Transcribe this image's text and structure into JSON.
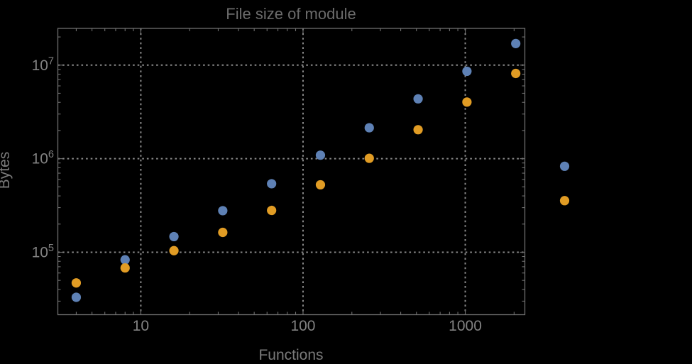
{
  "chart_data": {
    "type": "scatter",
    "title": "File size of module",
    "xlabel": "Functions",
    "ylabel": "Bytes",
    "xscale": "log",
    "yscale": "log",
    "xlim": [
      3.08,
      2330
    ],
    "ylim": [
      21500,
      24700000
    ],
    "grid": "dotted-major-decades",
    "legend": "none",
    "x": [
      4,
      8,
      16,
      32,
      64,
      128,
      256,
      512,
      1024,
      2048,
      4096
    ],
    "series": [
      {
        "name": "series-1-blue",
        "color": "#5E81B5",
        "values": [
          33000,
          83000,
          147000,
          278000,
          540000,
          1090000,
          2140000,
          4360000,
          8600000,
          17000000,
          830000
        ]
      },
      {
        "name": "series-2-orange",
        "color": "#E19C24",
        "values": [
          47000,
          68000,
          104000,
          163000,
          280000,
          526000,
          1010000,
          2040000,
          4030000,
          8150000,
          356000
        ]
      }
    ],
    "x_ticks": [
      {
        "v": 10,
        "label": "10"
      },
      {
        "v": 100,
        "label": "100"
      },
      {
        "v": 1000,
        "label": "1000"
      }
    ],
    "y_ticks": [
      {
        "v": 100000,
        "label": "10^5",
        "base": "10",
        "exp": "5"
      },
      {
        "v": 1000000,
        "label": "10^6",
        "base": "10",
        "exp": "6"
      },
      {
        "v": 10000000,
        "label": "10^7",
        "base": "10",
        "exp": "7"
      }
    ]
  },
  "colors": {
    "background": "#000000",
    "frame": "#6f6f6f",
    "ticks": "#6f6f6f",
    "gridline": "#8a8a8a",
    "title": "#6b6b6b",
    "tick_label": "#828282",
    "axis_label": "#7a7a7a",
    "series1": "#5E81B5",
    "series2": "#E19C24"
  }
}
